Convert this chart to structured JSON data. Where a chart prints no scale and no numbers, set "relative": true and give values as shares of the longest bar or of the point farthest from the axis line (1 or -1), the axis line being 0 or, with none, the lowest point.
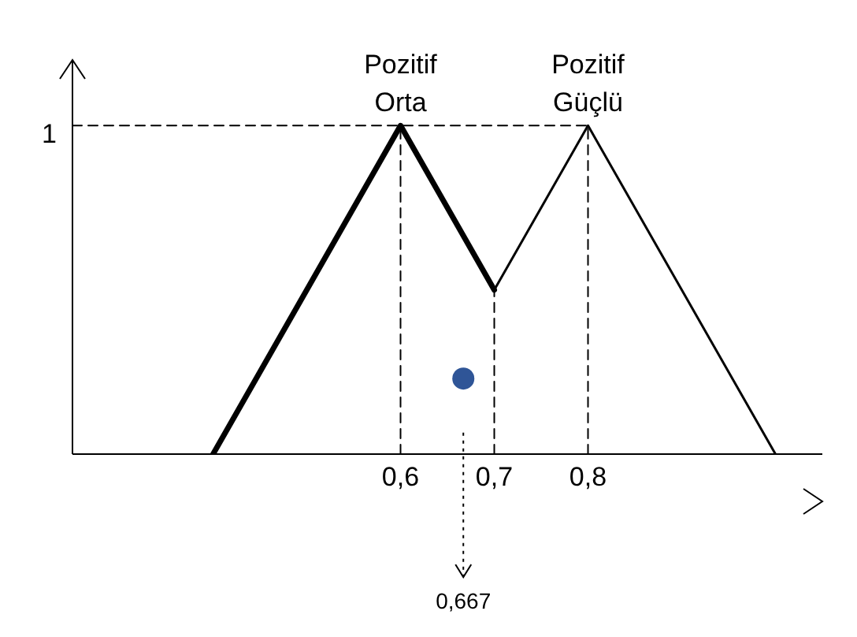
{
  "chart_data": {
    "type": "line",
    "relative": true,
    "xlim": [
      0.25,
      1.05
    ],
    "xticks": [
      {
        "value": 0.6,
        "label": "0,6"
      },
      {
        "value": 0.7,
        "label": "0,7"
      },
      {
        "value": 0.8,
        "label": "0,8"
      }
    ],
    "series": [
      {
        "color": "#000000",
        "x": [
          0.4,
          0.6,
          0.7
        ],
        "values": [
          0,
          1,
          0.5
        ]
      },
      {
        "color": "#000000",
        "x": [
          0.7,
          0.8,
          1.0
        ],
        "values": [
          0.5,
          1,
          0
        ]
      },
      {
        "color": "#000000",
        "line_style": "dashed",
        "x": [
          0.25,
          0.8
        ],
        "values": [
          1,
          1
        ]
      },
      {
        "color": "#000000",
        "line_style": "dashed",
        "x": [
          0.6,
          0.6
        ],
        "values": [
          0,
          1
        ]
      },
      {
        "color": "#000000",
        "line_style": "dashed",
        "x": [
          0.7,
          0.7
        ],
        "values": [
          0,
          0.5
        ]
      },
      {
        "color": "#000000",
        "line_style": "dashed",
        "x": [
          0.8,
          0.8
        ],
        "values": [
          0,
          1
        ]
      },
      {
        "type": "scatter",
        "color": "#2f5597",
        "marker": "circle",
        "x": [
          0.667
        ],
        "values": [
          0.23
        ]
      }
    ],
    "annotations": [
      {
        "text": "1",
        "x": 0.25,
        "y": 1
      },
      {
        "text": "Pozitif Orta",
        "x": 0.6,
        "y": 1
      },
      {
        "text": "Pozitif Güçlü",
        "x": 0.8,
        "y": 1
      },
      {
        "text": "0,667",
        "x": 0.667
      }
    ]
  }
}
